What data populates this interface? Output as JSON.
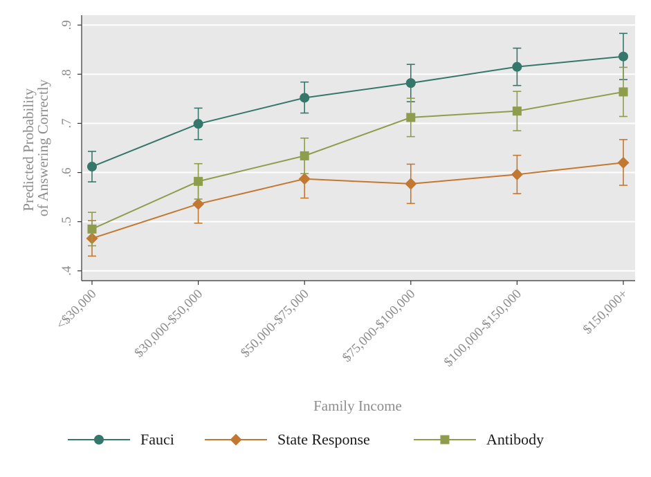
{
  "chart_data": {
    "type": "line",
    "xlabel": "Family Income",
    "ylabel": [
      "Predicted Probability",
      "of Answering Correctly"
    ],
    "categories": [
      "<$30,000",
      "$30,000-$50,000",
      "$50,000-$75,000",
      "$75,000-$100,000",
      "$100,000-$150,000",
      "$150,000+"
    ],
    "yticks": [
      ".4",
      ".5",
      ".6",
      ".7",
      ".8",
      ".9"
    ],
    "ylim": [
      0.38,
      0.92
    ],
    "grid": true,
    "legend_position": "bottom",
    "error_bars": true,
    "series": [
      {
        "name": "Fauci",
        "marker": "circle",
        "color": "#35776a",
        "values": [
          0.612,
          0.699,
          0.752,
          0.782,
          0.815,
          0.836
        ],
        "ci_low": [
          0.581,
          0.667,
          0.721,
          0.744,
          0.777,
          0.789
        ],
        "ci_high": [
          0.643,
          0.731,
          0.784,
          0.82,
          0.853,
          0.883
        ]
      },
      {
        "name": "State Response",
        "marker": "diamond",
        "color": "#c27830",
        "values": [
          0.466,
          0.536,
          0.587,
          0.577,
          0.596,
          0.62
        ],
        "ci_low": [
          0.43,
          0.497,
          0.548,
          0.537,
          0.557,
          0.574
        ],
        "ci_high": [
          0.502,
          0.575,
          0.626,
          0.617,
          0.635,
          0.667
        ]
      },
      {
        "name": "Antibody",
        "marker": "square",
        "color": "#8e9d4c",
        "values": [
          0.485,
          0.582,
          0.634,
          0.712,
          0.725,
          0.764
        ],
        "ci_low": [
          0.451,
          0.546,
          0.598,
          0.673,
          0.685,
          0.714
        ],
        "ci_high": [
          0.519,
          0.618,
          0.67,
          0.751,
          0.765,
          0.814
        ]
      }
    ]
  }
}
